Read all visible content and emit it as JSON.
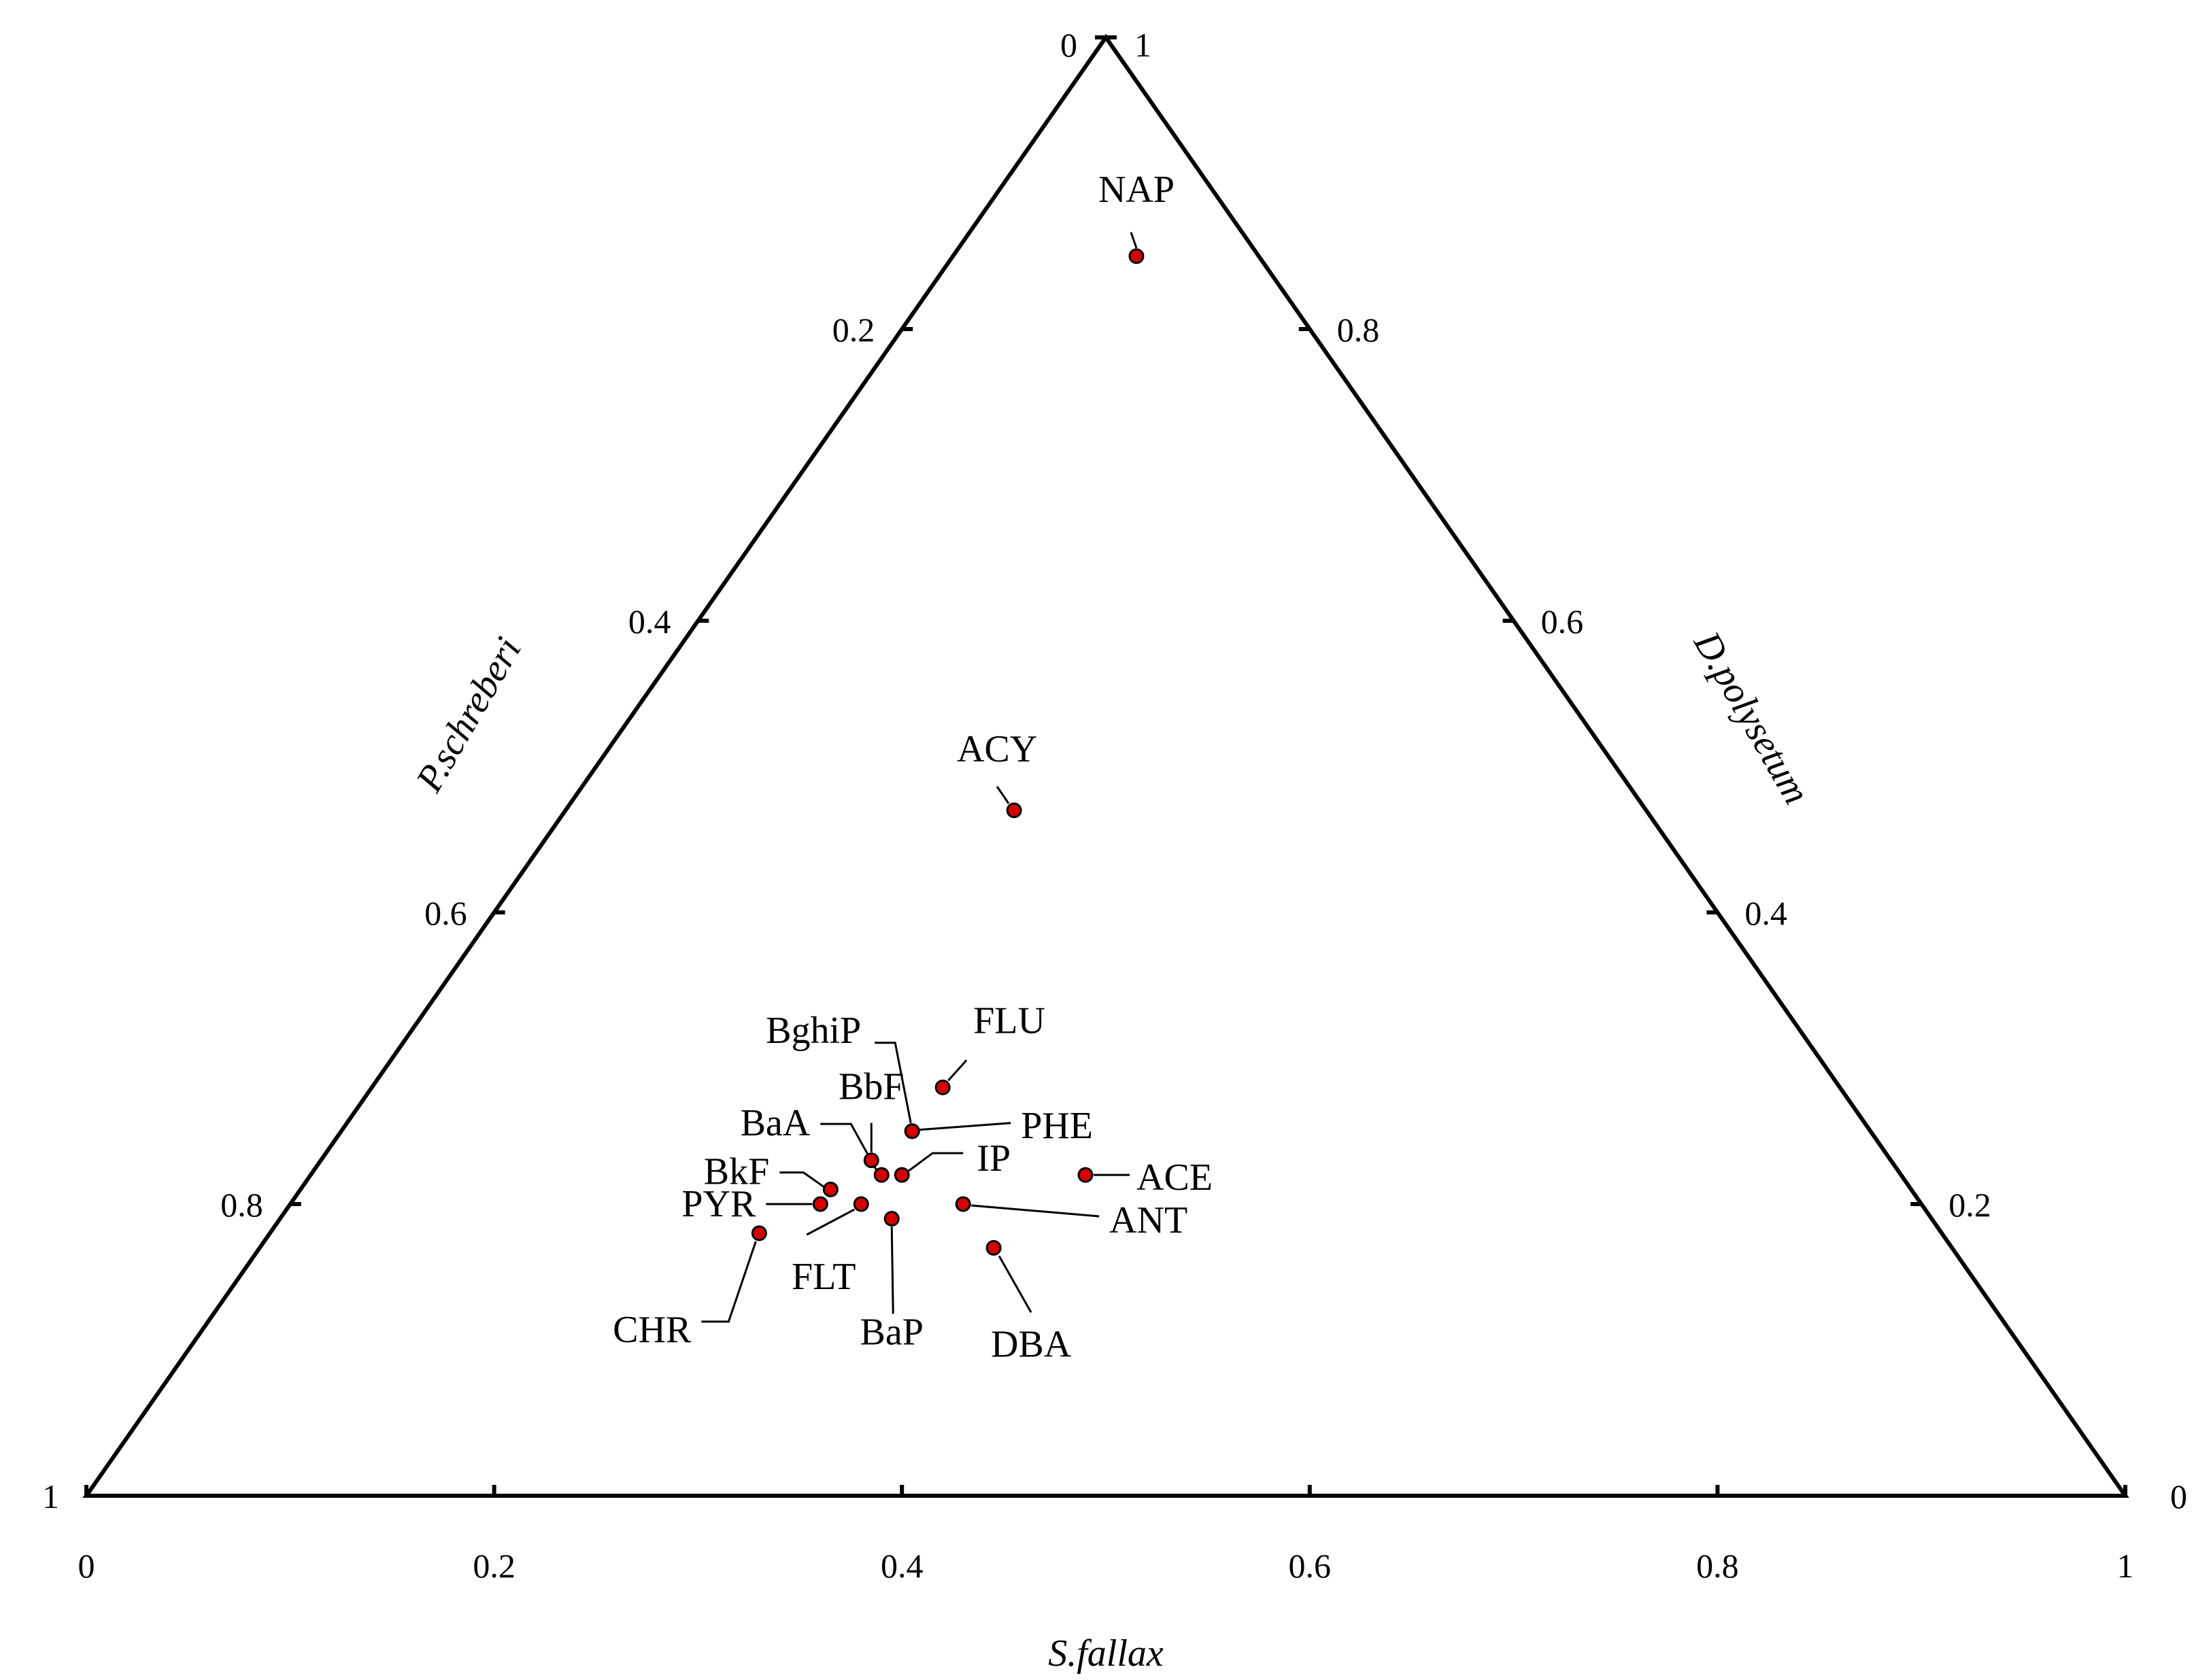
{
  "chart_data": {
    "type": "ternary-scatter",
    "axes": {
      "bottom": {
        "label": "S.fallax",
        "ticks": [
          "0",
          "0.2",
          "0.4",
          "0.6",
          "0.8",
          "1"
        ]
      },
      "left": {
        "label": "P.schreberi",
        "ticks": [
          "0",
          "0.2",
          "0.4",
          "0.6",
          "0.8",
          "1"
        ]
      },
      "right": {
        "label": "D.polysetum",
        "ticks": [
          "1",
          "0.8",
          "0.6",
          "0.4",
          "0.2",
          "0"
        ]
      }
    },
    "marker_color": "#d40000",
    "points": [
      {
        "label": "NAP",
        "S.fallax": 0.09,
        "P.schreberi": 0.06,
        "D.polysetum": 0.85
      },
      {
        "label": "ACY",
        "S.fallax": 0.22,
        "P.schreberi": 0.31,
        "D.polysetum": 0.47
      },
      {
        "label": "FLU",
        "S.fallax": 0.28,
        "P.schreberi": 0.44,
        "D.polysetum": 0.28
      },
      {
        "label": "BghiP",
        "S.fallax": 0.28,
        "P.schreberi": 0.47,
        "D.polysetum": 0.25
      },
      {
        "label": "PHE",
        "S.fallax": 0.28,
        "P.schreberi": 0.47,
        "D.polysetum": 0.25
      },
      {
        "label": "BbF",
        "S.fallax": 0.27,
        "P.schreberi": 0.5,
        "D.polysetum": 0.23
      },
      {
        "label": "BaA",
        "S.fallax": 0.28,
        "P.schreberi": 0.5,
        "D.polysetum": 0.22
      },
      {
        "label": "IP",
        "S.fallax": 0.29,
        "P.schreberi": 0.49,
        "D.polysetum": 0.22
      },
      {
        "label": "ACE",
        "S.fallax": 0.38,
        "P.schreberi": 0.4,
        "D.polysetum": 0.22
      },
      {
        "label": "BkF",
        "S.fallax": 0.26,
        "P.schreberi": 0.53,
        "D.polysetum": 0.21
      },
      {
        "label": "PYR",
        "S.fallax": 0.26,
        "P.schreberi": 0.54,
        "D.polysetum": 0.2
      },
      {
        "label": "FLT",
        "S.fallax": 0.28,
        "P.schreberi": 0.52,
        "D.polysetum": 0.2
      },
      {
        "label": "BaP",
        "S.fallax": 0.3,
        "P.schreberi": 0.51,
        "D.polysetum": 0.19
      },
      {
        "label": "ANT",
        "S.fallax": 0.33,
        "P.schreberi": 0.47,
        "D.polysetum": 0.2
      },
      {
        "label": "CHR",
        "S.fallax": 0.24,
        "P.schreberi": 0.58,
        "D.polysetum": 0.18
      },
      {
        "label": "DBA",
        "S.fallax": 0.36,
        "P.schreberi": 0.47,
        "D.polysetum": 0.17
      }
    ]
  }
}
